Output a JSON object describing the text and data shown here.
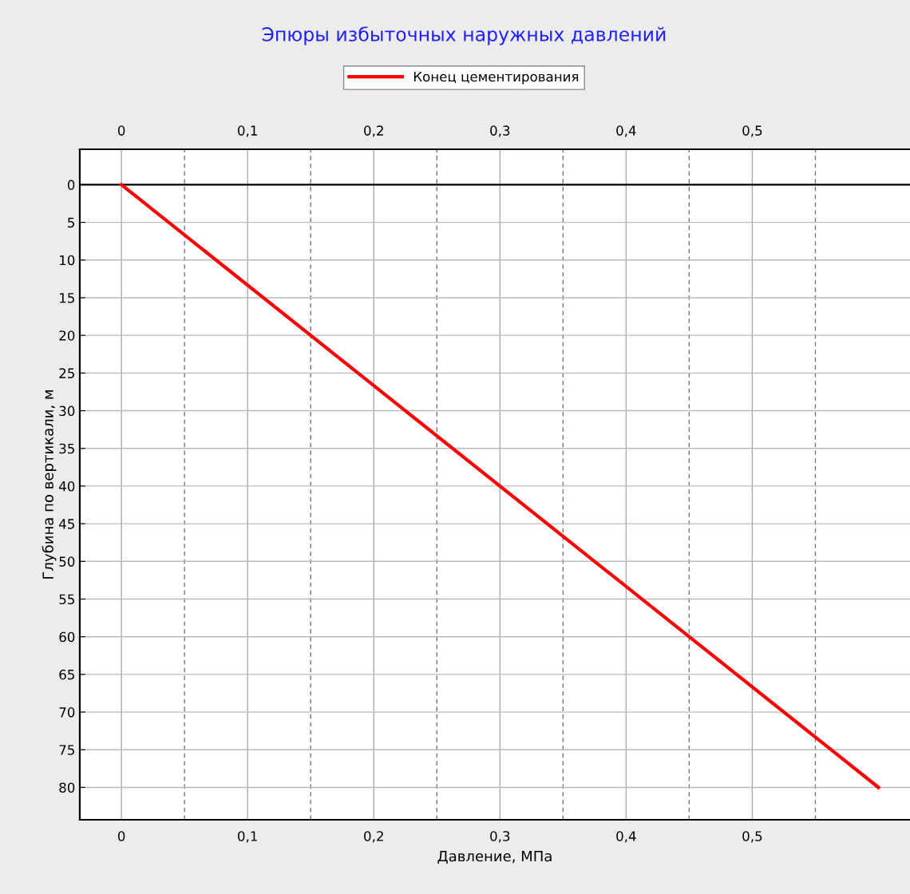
{
  "chart_data": {
    "type": "line",
    "title": "Эпюры избыточных наружных давлений",
    "xlabel": "Давление, МПа",
    "ylabel": "Глубина по вертикали, м",
    "x": [
      0,
      0.6
    ],
    "series": [
      {
        "name": "Конец цементирования",
        "color": "#ff0000",
        "values": [
          0,
          80
        ]
      }
    ],
    "xlim": [
      -0.033,
      0.625
    ],
    "ylim": [
      84.3,
      -4.7
    ],
    "xticks": [
      {
        "value": 0,
        "label": "0"
      },
      {
        "value": 0.05,
        "label": null
      },
      {
        "value": 0.1,
        "label": "0,1"
      },
      {
        "value": 0.15,
        "label": null
      },
      {
        "value": 0.2,
        "label": "0,2"
      },
      {
        "value": 0.25,
        "label": null
      },
      {
        "value": 0.3,
        "label": "0,3"
      },
      {
        "value": 0.35,
        "label": null
      },
      {
        "value": 0.4,
        "label": "0,4"
      },
      {
        "value": 0.45,
        "label": null
      },
      {
        "value": 0.5,
        "label": "0,5"
      },
      {
        "value": 0.55,
        "label": null
      }
    ],
    "x2lim": [
      -0.033,
      0.625
    ],
    "x2ticks": [
      {
        "value": 0,
        "label": "0"
      },
      {
        "value": 0.05,
        "label": null
      },
      {
        "value": 0.1,
        "label": "0,1"
      },
      {
        "value": 0.15,
        "label": null
      },
      {
        "value": 0.2,
        "label": "0,2"
      },
      {
        "value": 0.25,
        "label": null
      },
      {
        "value": 0.3,
        "label": "0,3"
      },
      {
        "value": 0.35,
        "label": null
      },
      {
        "value": 0.4,
        "label": "0,4"
      },
      {
        "value": 0.45,
        "label": null
      },
      {
        "value": 0.5,
        "label": "0,5"
      },
      {
        "value": 0.55,
        "label": null
      }
    ],
    "yticks": [
      0,
      5,
      10,
      15,
      20,
      25,
      30,
      35,
      40,
      45,
      50,
      55,
      60,
      65,
      70,
      75,
      80
    ],
    "ref_lines": [
      {
        "axis": "y",
        "value": 0,
        "color": "#000000"
      }
    ],
    "grid": true,
    "legend": "top",
    "marker": "none",
    "line_style": "solid"
  }
}
